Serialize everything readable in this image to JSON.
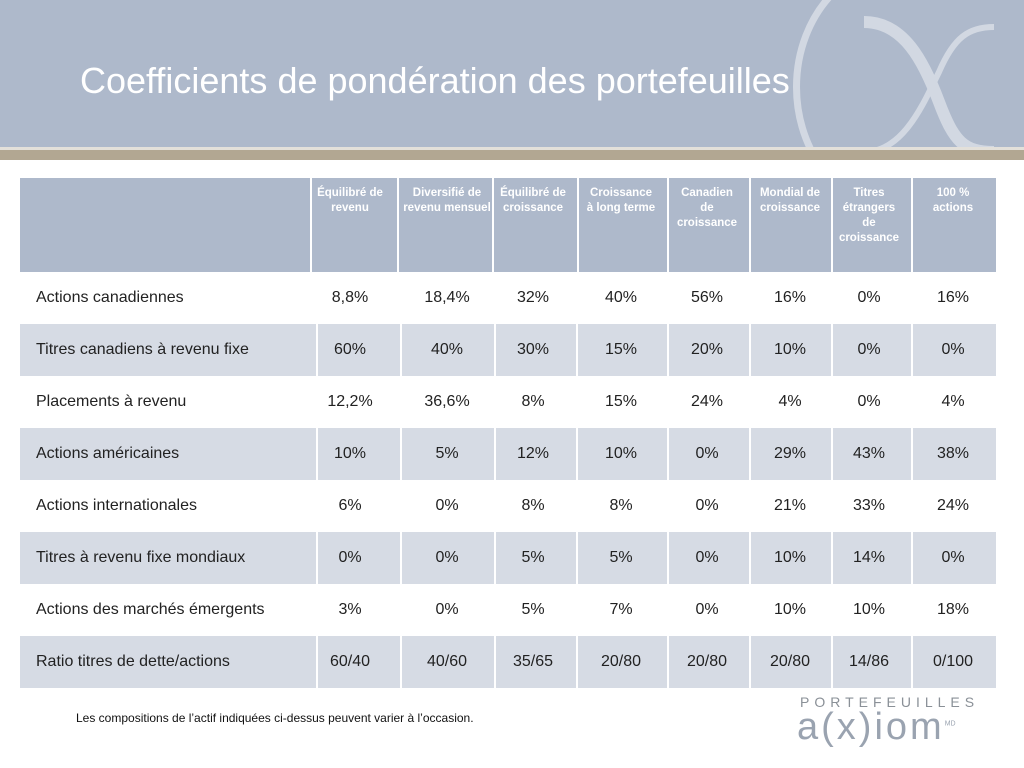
{
  "slide": {
    "title": "Coefficients de pondération des portefeuilles",
    "note": "Les compositions de l’actif indiquées ci-dessus peuvent varier à l’occasion."
  },
  "logo": {
    "top": "PORTEFEUILLES",
    "main": "a(x)iom",
    "mark": "MD"
  },
  "table": {
    "columns": [
      "Équilibré de\nrevenu",
      "Diversifié de\nrevenu mensuel",
      "Équilibré de\ncroissance",
      "Croissance\nà long terme",
      "Canadien\nde\ncroissance",
      "Mondial de\ncroissance",
      "Titres\nétrangers\nde\ncroissance",
      "100 %\nactions"
    ],
    "rows": [
      {
        "label": "Actions canadiennes",
        "values": [
          "8,8%",
          "18,4%",
          "32%",
          "40%",
          "56%",
          "16%",
          "0%",
          "16%"
        ]
      },
      {
        "label": "Titres canadiens à revenu fixe",
        "values": [
          "60%",
          "40%",
          "30%",
          "15%",
          "20%",
          "10%",
          "0%",
          "0%"
        ]
      },
      {
        "label": "Placements à revenu",
        "values": [
          "12,2%",
          "36,6%",
          "8%",
          "15%",
          "24%",
          "4%",
          "0%",
          "4%"
        ]
      },
      {
        "label": "Actions américaines",
        "values": [
          "10%",
          "5%",
          "12%",
          "10%",
          "0%",
          "29%",
          "43%",
          "38%"
        ]
      },
      {
        "label": "Actions internationales",
        "values": [
          "6%",
          "0%",
          "8%",
          "8%",
          "0%",
          "21%",
          "33%",
          "24%"
        ]
      },
      {
        "label": "Titres à revenu fixe mondiaux",
        "values": [
          "0%",
          "0%",
          "5%",
          "5%",
          "0%",
          "10%",
          "14%",
          "0%"
        ]
      },
      {
        "label": "Actions des marchés émergents",
        "values": [
          "3%",
          "0%",
          "5%",
          "7%",
          "0%",
          "10%",
          "10%",
          "18%"
        ]
      },
      {
        "label": "Ratio titres de dette/actions",
        "values": [
          "60/40",
          "40/60",
          "35/65",
          "20/80",
          "20/80",
          "20/80",
          "14/86",
          "0/100"
        ]
      }
    ]
  },
  "colors": {
    "header": "#aeb9cb",
    "shaded_row": "#d6dbe4",
    "tan_rule": "#b2a792"
  }
}
